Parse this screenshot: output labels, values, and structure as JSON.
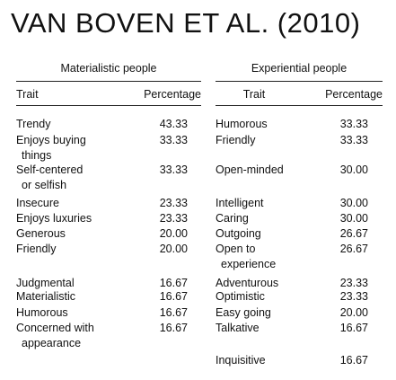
{
  "title": "VAN BOVEN ET AL. (2010)",
  "tables": [
    {
      "heading": "Materialistic people",
      "columns": [
        "Trait",
        "Percentage"
      ],
      "rows": [
        {
          "trait": [
            "Trendy"
          ],
          "percentage": "43.33"
        },
        {
          "trait": [
            "Enjoys buying",
            "things"
          ],
          "percentage": "33.33"
        },
        {
          "trait": [
            "Self-centered",
            "or selfish"
          ],
          "percentage": "33.33"
        },
        {
          "trait": [
            "Insecure"
          ],
          "percentage": "23.33"
        },
        {
          "trait": [
            "Enjoys luxuries"
          ],
          "percentage": "23.33"
        },
        {
          "trait": [
            "Generous"
          ],
          "percentage": "20.00"
        },
        {
          "trait": [
            "Friendly"
          ],
          "percentage": "20.00"
        },
        {
          "trait": [
            "Judgmental"
          ],
          "percentage": "16.67"
        },
        {
          "trait": [
            "Materialistic"
          ],
          "percentage": "16.67"
        },
        {
          "trait": [
            "Humorous"
          ],
          "percentage": "16.67"
        },
        {
          "trait": [
            "Concerned with",
            "appearance"
          ],
          "percentage": "16.67"
        }
      ]
    },
    {
      "heading": "Experiential people",
      "columns": [
        "Trait",
        "Percentage"
      ],
      "rows": [
        {
          "trait": [
            "Humorous"
          ],
          "percentage": "33.33"
        },
        {
          "trait": [
            "Friendly"
          ],
          "percentage": "33.33"
        },
        {
          "trait": [
            "Open-minded"
          ],
          "percentage": "30.00"
        },
        {
          "trait": [
            "Intelligent"
          ],
          "percentage": "30.00"
        },
        {
          "trait": [
            "Caring"
          ],
          "percentage": "30.00"
        },
        {
          "trait": [
            "Outgoing"
          ],
          "percentage": "26.67"
        },
        {
          "trait": [
            "Open to",
            "experience"
          ],
          "percentage": "26.67"
        },
        {
          "trait": [
            "Adventurous"
          ],
          "percentage": "23.33"
        },
        {
          "trait": [
            "Optimistic"
          ],
          "percentage": "23.33"
        },
        {
          "trait": [
            "Easy going"
          ],
          "percentage": "20.00"
        },
        {
          "trait": [
            "Talkative"
          ],
          "percentage": "16.67"
        },
        {
          "trait": [
            "Inquisitive"
          ],
          "percentage": "16.67"
        }
      ]
    }
  ]
}
